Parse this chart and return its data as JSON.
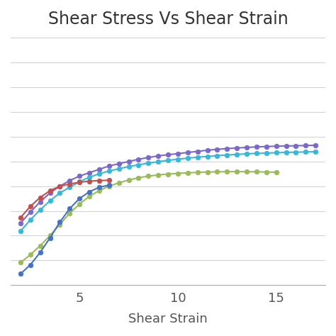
{
  "title": "Shear Stress Vs Shear Strain",
  "xlabel": "Shear Strain",
  "ylabel": "",
  "xticks": [
    5,
    10,
    15
  ],
  "background_color": "#ffffff",
  "grid_color": "#d3d3d3",
  "series": [
    {
      "name": "purple",
      "color": "#7B68C8",
      "x": [
        2.0,
        2.5,
        3.0,
        3.5,
        4.0,
        4.5,
        5.0,
        5.5,
        6.0,
        6.5,
        7.0,
        7.5,
        8.0,
        8.5,
        9.0,
        9.5,
        10.0,
        10.5,
        11.0,
        11.5,
        12.0,
        12.5,
        13.0,
        13.5,
        14.0,
        14.5,
        15.0,
        15.5,
        16.0,
        16.5,
        17.0
      ],
      "y": [
        55,
        65,
        74,
        82,
        88,
        93,
        97,
        100,
        103,
        106,
        108,
        110,
        112,
        113.5,
        115,
        116,
        117,
        118,
        119,
        120,
        120.8,
        121.5,
        122,
        122.5,
        123,
        123.3,
        123.6,
        123.8,
        124,
        124.2,
        124.4
      ]
    },
    {
      "name": "cyan",
      "color": "#38B8D8",
      "x": [
        2.0,
        2.5,
        3.0,
        3.5,
        4.0,
        4.5,
        5.0,
        5.5,
        6.0,
        6.5,
        7.0,
        7.5,
        8.0,
        8.5,
        9.0,
        9.5,
        10.0,
        10.5,
        11.0,
        11.5,
        12.0,
        12.5,
        13.0,
        13.5,
        14.0,
        14.5,
        15.0,
        15.5,
        16.0,
        16.5,
        17.0
      ],
      "y": [
        48,
        58,
        67,
        75,
        82,
        87,
        92,
        96,
        99,
        101.5,
        103.5,
        105.5,
        107,
        108.5,
        109.8,
        111,
        112,
        113,
        113.8,
        114.5,
        115.2,
        115.8,
        116.3,
        116.8,
        117.2,
        117.5,
        117.8,
        118.1,
        118.3,
        118.5,
        118.7
      ]
    },
    {
      "name": "olive",
      "color": "#9BBB59",
      "x": [
        2.0,
        2.5,
        3.0,
        3.5,
        4.0,
        4.5,
        5.0,
        5.5,
        6.0,
        6.5,
        7.0,
        7.5,
        8.0,
        8.5,
        9.0,
        9.5,
        10.0,
        10.5,
        11.0,
        11.5,
        12.0,
        12.5,
        13.0,
        13.5,
        14.0,
        14.5,
        15.0
      ],
      "y": [
        20,
        27,
        35,
        44,
        54,
        64,
        72,
        79,
        84,
        88,
        91,
        93.5,
        95.5,
        97,
        98,
        98.8,
        99.4,
        99.9,
        100.3,
        100.6,
        100.8,
        100.9,
        101.0,
        100.9,
        100.8,
        100.6,
        100.4
      ]
    },
    {
      "name": "red",
      "color": "#C0504D",
      "x": [
        2.0,
        2.5,
        3.0,
        3.5,
        4.0,
        4.5,
        5.0,
        5.5,
        6.0,
        6.5
      ],
      "y": [
        60,
        70,
        78,
        84,
        88,
        90,
        91.5,
        92.5,
        93,
        93.3
      ]
    },
    {
      "name": "blue",
      "color": "#4472C4",
      "x": [
        2.0,
        2.5,
        3.0,
        3.5,
        4.0,
        4.5,
        5.0,
        5.5,
        6.0,
        6.5
      ],
      "y": [
        10,
        18,
        29,
        42,
        56,
        68,
        77,
        83,
        87,
        89
      ]
    }
  ],
  "xlim": [
    1.5,
    17.5
  ],
  "ylim": [
    0,
    220
  ],
  "figsize": [
    4.74,
    4.74
  ],
  "dpi": 100
}
